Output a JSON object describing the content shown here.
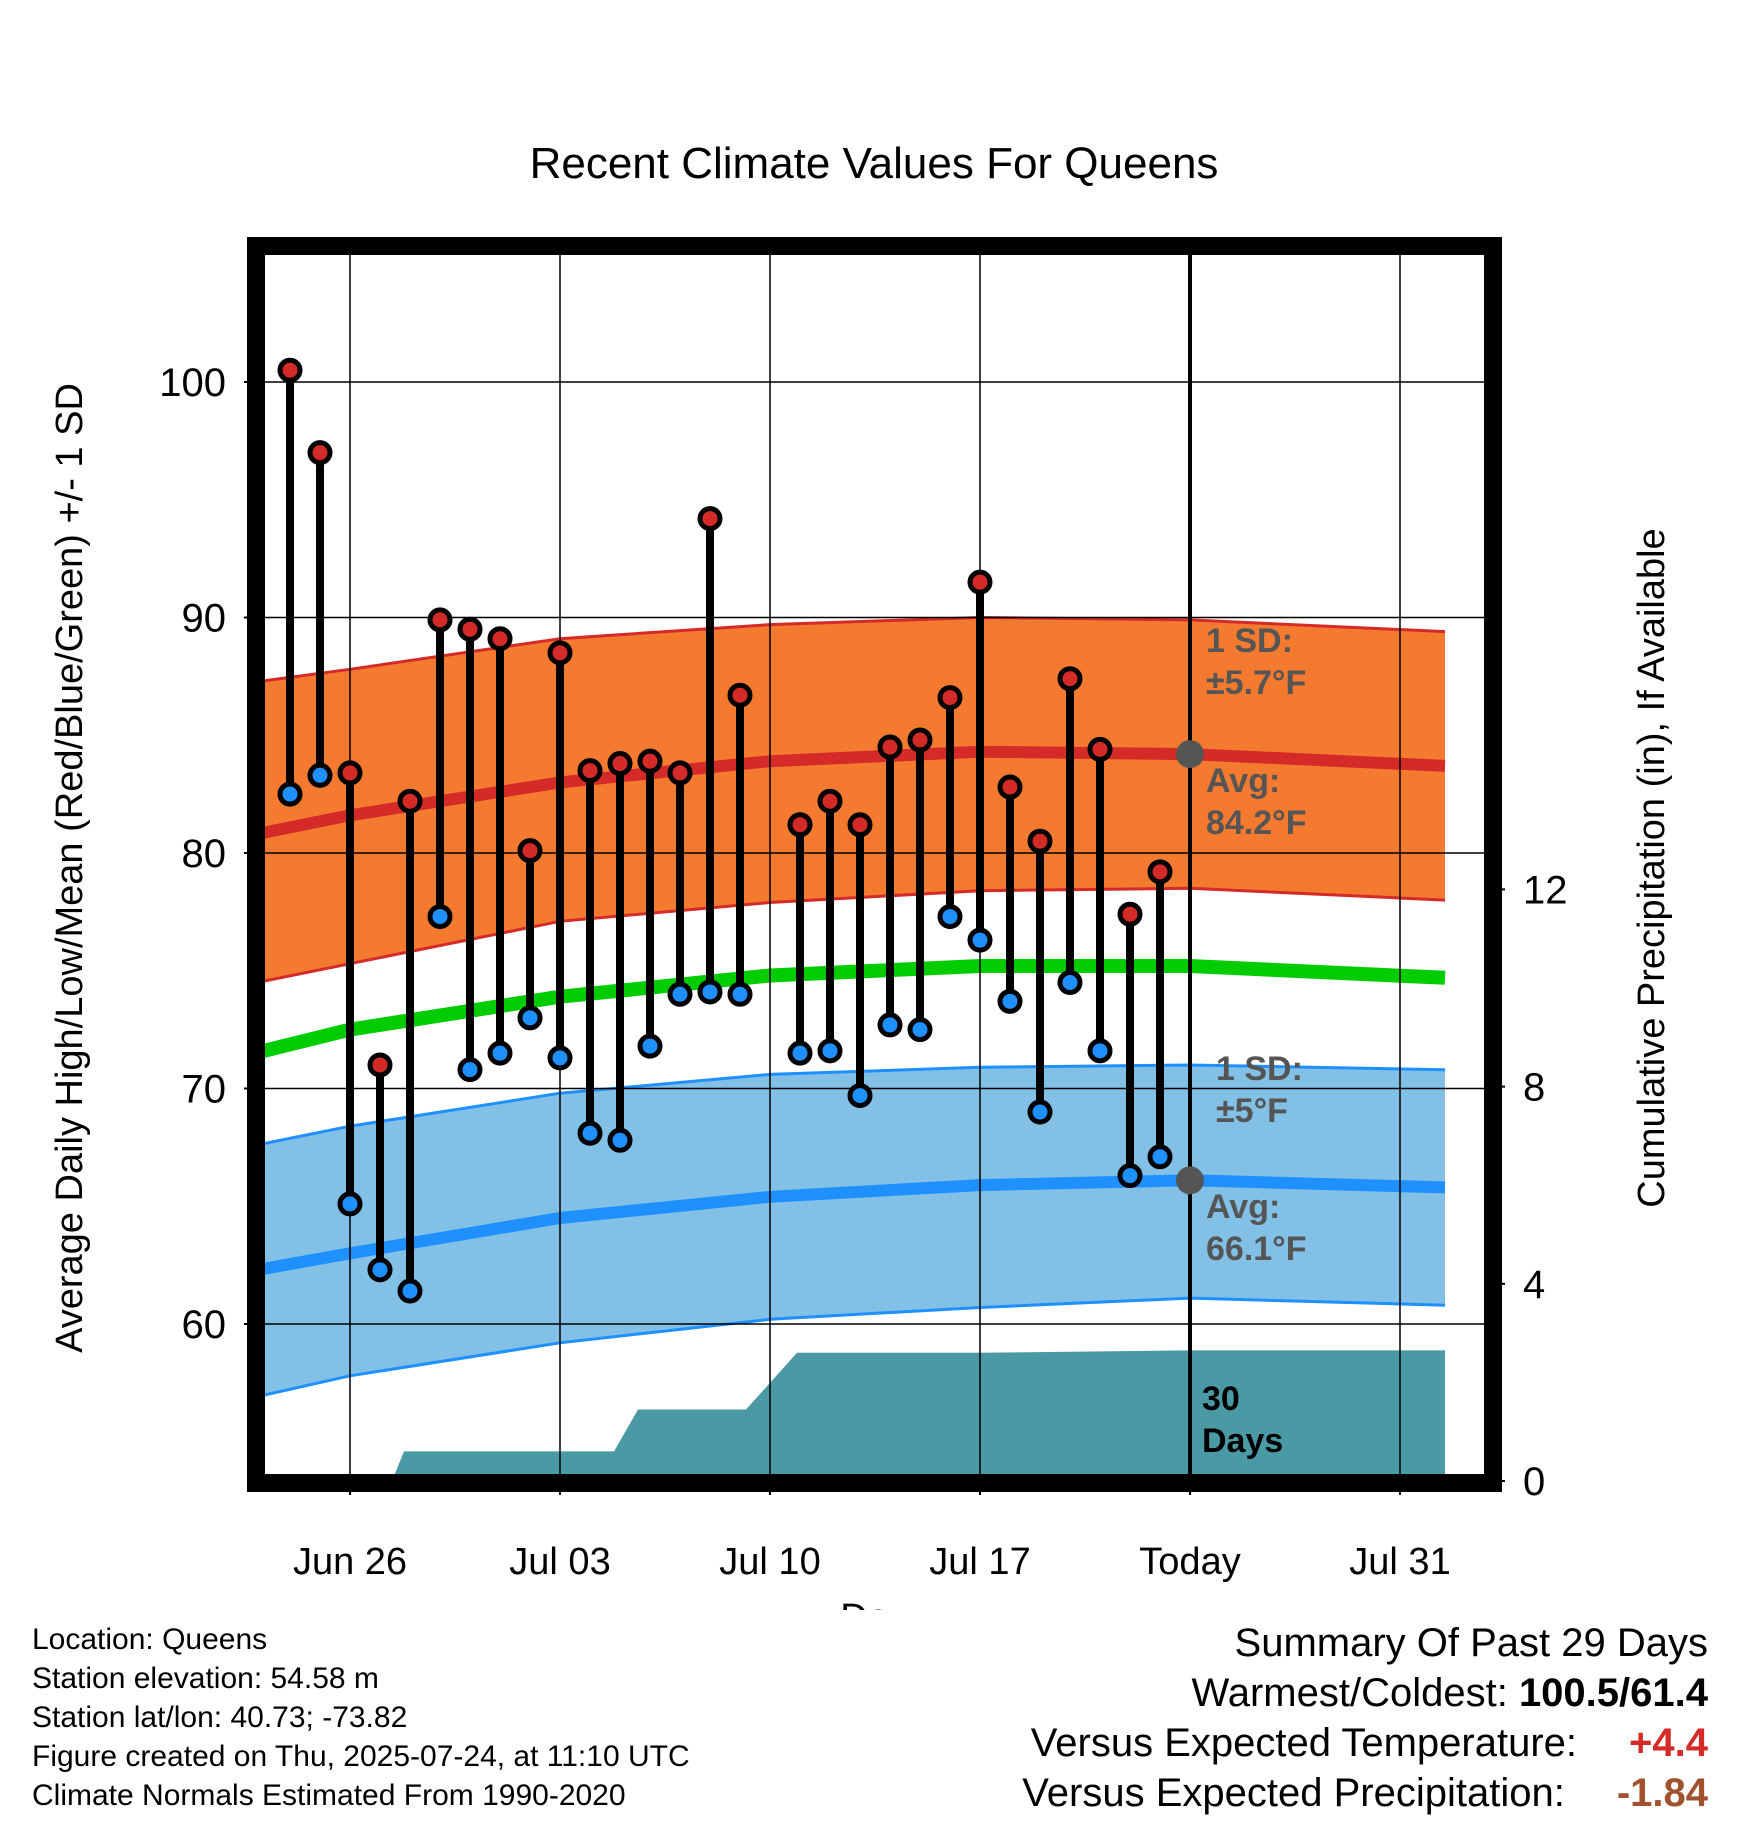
{
  "chart_data": {
    "type": "line",
    "title": "Recent Climate Values For Queens",
    "xlabel": "Day",
    "ylabel": "Average Daily High/Low/Mean (Red/Blue/Green) +/- 1 SD",
    "y2label": "Cumulative Precipitation (in), If Available",
    "ylim": [
      53.5,
      106.5
    ],
    "y2lim": [
      0,
      24.3
    ],
    "xlim": [
      -3.5,
      36.5
    ],
    "xtick_labels": [
      {
        "day": 0,
        "label": "Jun 26"
      },
      {
        "day": 7,
        "label": "Jul 03"
      },
      {
        "day": 14,
        "label": "Jul 10"
      },
      {
        "day": 21,
        "label": "Jul 17"
      },
      {
        "day": 28,
        "label": "Today"
      },
      {
        "day": 35,
        "label": "Jul 31"
      }
    ],
    "yticks": [
      60,
      70,
      80,
      90,
      100
    ],
    "y2ticks": [
      0,
      4,
      8,
      12
    ],
    "grid": true,
    "today_day": 28,
    "observations": {
      "days": [
        -2,
        -1,
        0,
        1,
        2,
        3,
        4,
        5,
        6,
        7,
        8,
        9,
        10,
        11,
        12,
        13,
        14,
        15,
        16,
        17,
        18,
        19,
        20,
        21,
        22,
        23,
        24,
        25,
        26,
        27
      ],
      "highs": [
        100.5,
        97.0,
        83.4,
        71.0,
        82.2,
        89.9,
        89.5,
        89.1,
        80.1,
        88.5,
        83.5,
        83.8,
        83.9,
        83.4,
        94.2,
        86.7,
        null,
        81.2,
        82.2,
        81.2,
        84.5,
        84.8,
        86.6,
        91.5,
        82.8,
        80.5,
        87.4,
        84.4,
        77.4,
        79.2
      ],
      "lows": [
        82.5,
        83.3,
        65.1,
        62.3,
        61.4,
        77.3,
        70.8,
        71.5,
        73.0,
        71.3,
        68.1,
        67.8,
        71.8,
        74.0,
        74.1,
        74.0,
        null,
        71.5,
        71.6,
        69.7,
        72.7,
        72.5,
        77.3,
        76.3,
        73.7,
        69.0,
        74.5,
        71.6,
        66.3,
        67.1
      ]
    },
    "normals": {
      "days": [
        -3.5,
        0,
        7,
        14,
        21,
        28,
        36.5
      ],
      "avg_high": [
        80.7,
        81.6,
        83.0,
        83.9,
        84.3,
        84.2,
        83.7
      ],
      "high_sd_upper": [
        87.2,
        87.8,
        89.1,
        89.7,
        90.0,
        89.9,
        89.4
      ],
      "high_sd_lower": [
        74.4,
        75.3,
        77.1,
        77.9,
        78.4,
        78.5,
        78.0
      ],
      "avg_mean": [
        71.4,
        72.5,
        73.9,
        74.8,
        75.2,
        75.2,
        74.7
      ],
      "avg_low": [
        62.2,
        63.0,
        64.5,
        65.4,
        65.9,
        66.1,
        65.8
      ],
      "low_sd_upper": [
        67.5,
        68.4,
        69.8,
        70.6,
        70.9,
        71.0,
        70.8
      ],
      "low_sd_lower": [
        56.8,
        57.8,
        59.2,
        60.2,
        60.7,
        61.1,
        60.8
      ]
    },
    "precipitation": {
      "days": [
        1.4,
        1.8,
        8.8,
        9.6,
        13.2,
        14.9,
        20.9,
        27.9,
        36.5
      ],
      "cumulative": [
        0,
        0.6,
        0.6,
        1.45,
        1.45,
        2.6,
        2.6,
        2.65,
        2.65
      ]
    },
    "annotations": {
      "high_sd_label": "1 SD:",
      "high_sd_value": "±5.7°F",
      "high_avg_label": "Avg:",
      "high_avg_value": "84.2°F",
      "low_sd_label": "1 SD:",
      "low_sd_value": "±5°F",
      "low_avg_label": "Avg:",
      "low_avg_value": "66.1°F",
      "precip_label_1": "30",
      "precip_label_2": "Days"
    },
    "colors": {
      "high_band": "#f47a30",
      "high_line": "#d42a28",
      "mean_line": "#00cc00",
      "low_band": "#82c0e6",
      "low_line": "#1e90ff",
      "precip": "#4a9aa5",
      "high_dot": "#d42a28",
      "low_dot": "#1e90ff",
      "today_dot": "#555555"
    }
  },
  "info": {
    "location": "Location: Queens",
    "elevation": "Station elevation: 54.58 m",
    "latlon": "Station lat/lon: 40.73; -73.82",
    "created": "Figure created on Thu, 2025-07-24, at 11:10 UTC",
    "normals": "Climate Normals Estimated From 1990-2020"
  },
  "summary": {
    "title": "Summary Of Past 29 Days",
    "warm_cold_label": "Warmest/Coldest:",
    "warm_cold_value": "100.5/61.4",
    "temp_label": "Versus Expected Temperature:",
    "temp_value": "+4.4",
    "temp_color": "#d42a28",
    "precip_label": "Versus Expected Precipitation:",
    "precip_value": "-1.84",
    "precip_color": "#a0522d"
  }
}
